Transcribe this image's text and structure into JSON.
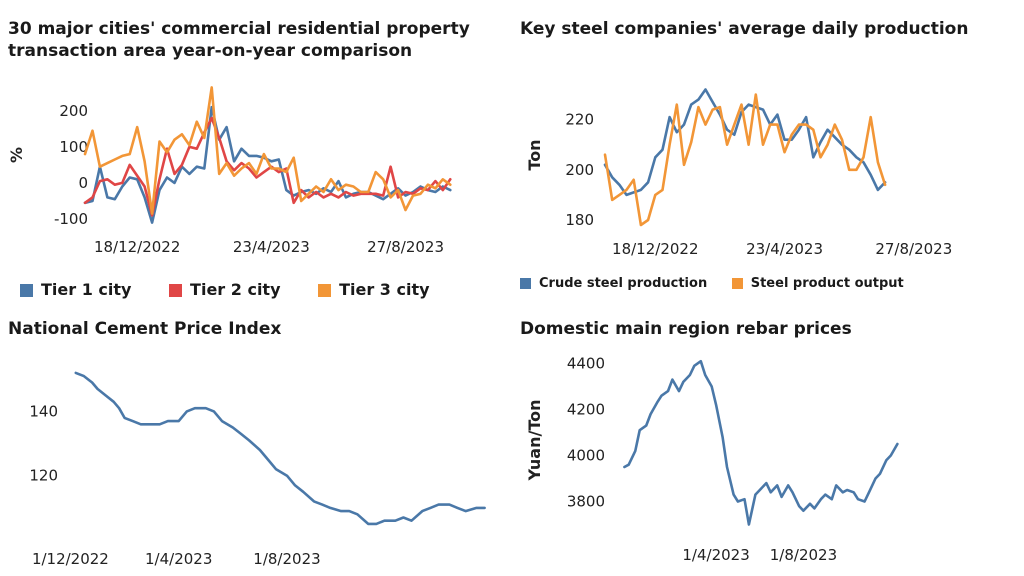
{
  "colors": {
    "blue": "#4a78a8",
    "red": "#e04646",
    "orange": "#f29637"
  },
  "chart_data": [
    {
      "type": "line",
      "title": "30 major cities' commercial residential property transaction area year-on-year comparison",
      "ylabel": "%",
      "ylim": [
        -125,
        280
      ],
      "yticks": [
        -100,
        0,
        100,
        200
      ],
      "xlim": [
        0,
        55
      ],
      "xtick_labels": [
        {
          "x": 7,
          "label": "18/12/2022"
        },
        {
          "x": 25,
          "label": "23/4/2023"
        },
        {
          "x": 43,
          "label": "27/8/2023"
        }
      ],
      "legend_position": "bottom",
      "series": [
        {
          "name": "Tier 1 city",
          "color": "#4a78a8",
          "values": [
            -55,
            -50,
            45,
            -40,
            -45,
            -10,
            15,
            10,
            -40,
            -110,
            -20,
            15,
            0,
            45,
            25,
            45,
            40,
            210,
            120,
            155,
            60,
            95,
            75,
            75,
            70,
            60,
            65,
            -20,
            -35,
            -25,
            -20,
            -30,
            -15,
            -25,
            5,
            -40,
            -30,
            -25,
            -25,
            -35,
            -45,
            -30,
            -15,
            -35,
            -25,
            -10,
            -20,
            -25,
            -10,
            -20
          ]
        },
        {
          "name": "Tier 2 city",
          "color": "#e04646",
          "values": [
            -55,
            -40,
            5,
            10,
            -5,
            0,
            50,
            20,
            -10,
            -90,
            10,
            95,
            25,
            50,
            100,
            95,
            140,
            180,
            125,
            60,
            35,
            55,
            40,
            15,
            30,
            45,
            30,
            40,
            -55,
            -20,
            -40,
            -25,
            -40,
            -30,
            -40,
            -25,
            -35,
            -30,
            -30,
            -30,
            -35,
            45,
            -40,
            -25,
            -30,
            -15,
            -20,
            5,
            -20,
            10
          ]
        },
        {
          "name": "Tier 3 city",
          "color": "#f29637",
          "values": [
            80,
            145,
            45,
            55,
            65,
            75,
            80,
            155,
            60,
            -85,
            115,
            85,
            120,
            135,
            105,
            170,
            125,
            265,
            25,
            55,
            20,
            40,
            55,
            25,
            80,
            40,
            40,
            30,
            70,
            -50,
            -30,
            -10,
            -25,
            10,
            -20,
            -5,
            -10,
            -25,
            -25,
            30,
            10,
            -40,
            -20,
            -75,
            -35,
            -30,
            -5,
            -15,
            10,
            -5
          ]
        }
      ]
    },
    {
      "type": "line",
      "title": "Key steel companies' average daily production",
      "ylabel": "Ton",
      "ylim": [
        176,
        235
      ],
      "yticks": [
        180,
        200,
        220
      ],
      "xlim": [
        0,
        55
      ],
      "xtick_labels": [
        {
          "x": 7,
          "label": "18/12/2022"
        },
        {
          "x": 25,
          "label": "23/4/2023"
        },
        {
          "x": 43,
          "label": "27/8/2023"
        }
      ],
      "legend_position": "bottom",
      "series": [
        {
          "name": "Crude steel production",
          "color": "#4a78a8",
          "values": [
            202,
            197,
            194,
            190,
            191,
            192,
            195,
            205,
            208,
            221,
            215,
            218,
            226,
            228,
            232,
            227,
            222,
            216,
            214,
            223,
            226,
            225,
            224,
            218,
            222,
            212,
            212,
            216,
            221,
            205,
            211,
            216,
            213,
            210,
            208,
            205,
            203,
            198,
            192,
            195
          ]
        },
        {
          "name": "Steel product output",
          "color": "#f29637",
          "values": [
            206,
            188,
            190,
            192,
            196,
            178,
            180,
            190,
            192,
            210,
            226,
            202,
            211,
            225,
            218,
            224,
            225,
            210,
            218,
            226,
            210,
            230,
            210,
            218,
            218,
            207,
            214,
            218,
            218,
            216,
            205,
            210,
            218,
            212,
            200,
            200,
            205,
            221,
            203,
            194
          ]
        }
      ]
    },
    {
      "type": "line",
      "title": "National Cement Price Index",
      "ylabel": "",
      "ylim": [
        100,
        156
      ],
      "yticks": [
        120,
        140
      ],
      "xlim": [
        -0.2,
        15.5
      ],
      "xtick_labels": [
        {
          "x": 0,
          "label": "1/12/2022"
        },
        {
          "x": 4,
          "label": "1/4/2023"
        },
        {
          "x": 8,
          "label": "1/8/2023"
        }
      ],
      "series": [
        {
          "name": "",
          "color": "#4a78a8",
          "x": [
            0.2,
            0.5,
            0.8,
            1.0,
            1.3,
            1.6,
            1.8,
            2.0,
            2.3,
            2.6,
            3.0,
            3.3,
            3.6,
            4.0,
            4.3,
            4.6,
            5.0,
            5.3,
            5.6,
            6.0,
            6.3,
            6.6,
            7.0,
            7.3,
            7.6,
            8.0,
            8.3,
            8.6,
            9.0,
            9.3,
            9.6,
            10.0,
            10.3,
            10.6,
            11.0,
            11.3,
            11.6,
            12.0,
            12.3,
            12.6,
            13.0,
            13.3,
            13.6,
            14.0,
            14.3,
            14.6,
            15.0,
            15.3
          ],
          "values": [
            152,
            151,
            149,
            147,
            145,
            143,
            141,
            138,
            137,
            136,
            136,
            136,
            137,
            137,
            140,
            141,
            141,
            140,
            137,
            135,
            133,
            131,
            128,
            125,
            122,
            120,
            117,
            115,
            112,
            111,
            110,
            109,
            109,
            108,
            105,
            105,
            106,
            106,
            107,
            106,
            109,
            110,
            111,
            111,
            110,
            109,
            110,
            110
          ]
        }
      ]
    },
    {
      "type": "line",
      "title": "Domestic main region rebar prices",
      "ylabel": "Yuan/Ton",
      "ylim": [
        3650,
        4450
      ],
      "yticks": [
        3800,
        4000,
        4200,
        4400
      ],
      "xlim": [
        -0.4,
        17
      ],
      "xtick_labels": [
        {
          "x": 4,
          "label": "1/4/2023"
        },
        {
          "x": 8,
          "label": "1/8/2023"
        }
      ],
      "series": [
        {
          "name": "",
          "color": "#4a78a8",
          "x": [
            -0.2,
            0.0,
            0.3,
            0.5,
            0.8,
            1.0,
            1.3,
            1.5,
            1.8,
            2.0,
            2.3,
            2.5,
            2.8,
            3.0,
            3.3,
            3.5,
            3.8,
            4.0,
            4.3,
            4.5,
            4.8,
            5.0,
            5.3,
            5.5,
            5.8,
            6.0,
            6.3,
            6.5,
            6.8,
            7.0,
            7.3,
            7.5,
            7.8,
            8.0,
            8.3,
            8.5,
            8.8,
            9.0,
            9.3,
            9.5,
            9.8,
            10.0,
            10.3,
            10.5,
            10.8,
            11.0,
            11.3,
            11.5,
            11.8,
            12.0,
            12.3
          ],
          "values": [
            3950,
            3960,
            4020,
            4110,
            4130,
            4180,
            4230,
            4260,
            4280,
            4330,
            4280,
            4320,
            4350,
            4390,
            4410,
            4350,
            4300,
            4220,
            4080,
            3950,
            3830,
            3800,
            3810,
            3700,
            3830,
            3850,
            3880,
            3840,
            3870,
            3820,
            3870,
            3840,
            3780,
            3760,
            3790,
            3770,
            3810,
            3830,
            3810,
            3870,
            3840,
            3850,
            3840,
            3810,
            3800,
            3840,
            3900,
            3920,
            3980,
            4000,
            4050
          ]
        }
      ]
    }
  ]
}
